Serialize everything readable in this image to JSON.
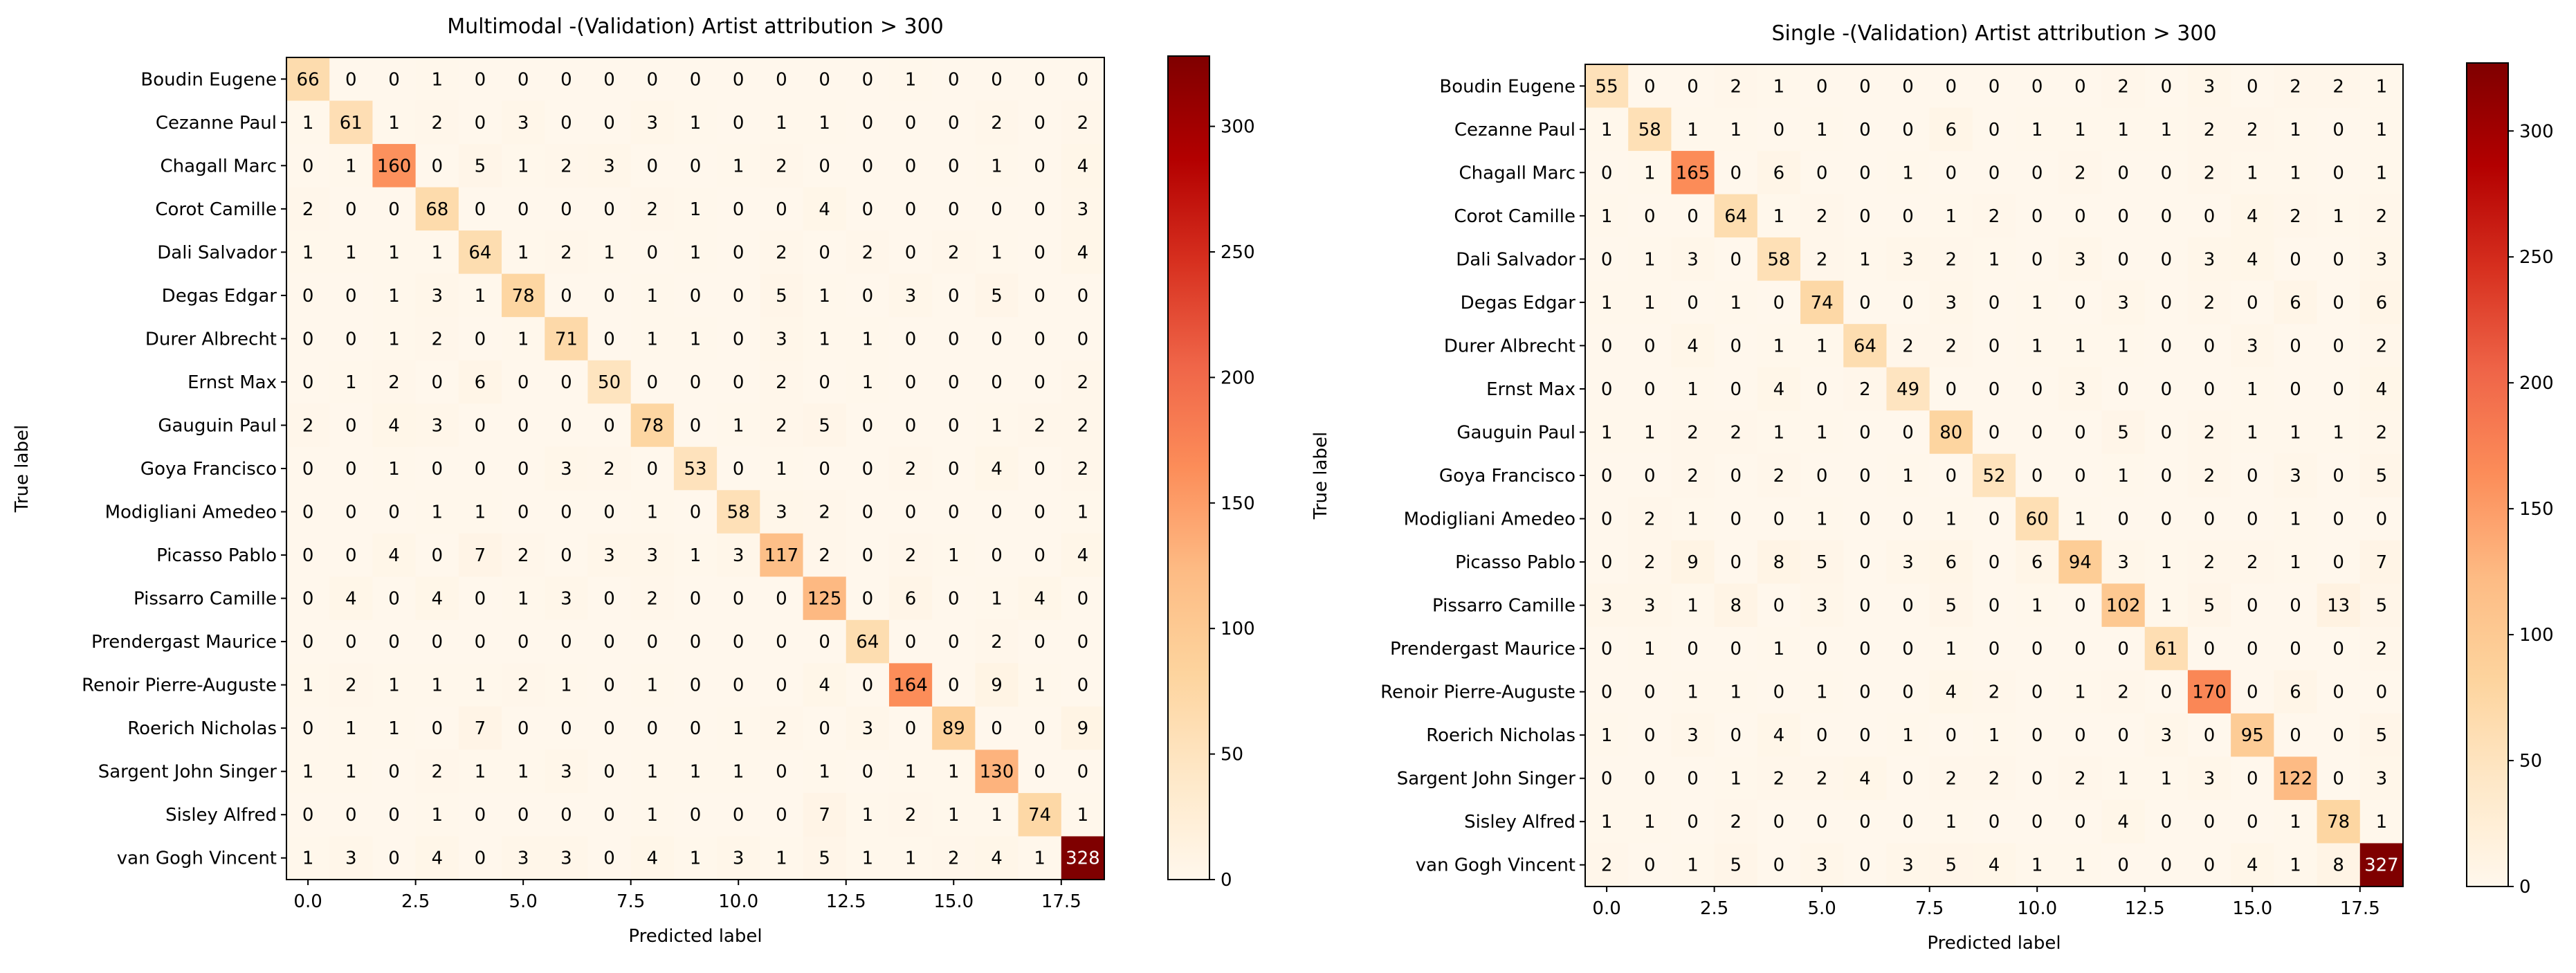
{
  "chart_data": [
    {
      "type": "heatmap",
      "title": "Multimodal -(Validation) Artist attribution > 300",
      "xlabel": "Predicted label",
      "ylabel": "True label",
      "x_ticks": [
        "0.0",
        "2.5",
        "5.0",
        "7.5",
        "10.0",
        "12.5",
        "15.0",
        "17.5"
      ],
      "x_tick_values": [
        0,
        2.5,
        5,
        7.5,
        10,
        12.5,
        15,
        17.5
      ],
      "xlim": [
        -0.5,
        18.5
      ],
      "y_labels": [
        "Boudin Eugene",
        "Cezanne Paul",
        "Chagall Marc",
        "Corot Camille",
        "Dali Salvador",
        "Degas Edgar",
        "Durer Albrecht",
        "Ernst Max",
        "Gauguin Paul",
        "Goya Francisco",
        "Modigliani Amedeo",
        "Picasso Pablo",
        "Pissarro Camille",
        "Prendergast Maurice",
        "Renoir Pierre-Auguste",
        "Roerich Nicholas",
        "Sargent John Singer",
        "Sisley Alfred",
        "van Gogh Vincent"
      ],
      "matrix": [
        [
          66,
          0,
          0,
          1,
          0,
          0,
          0,
          0,
          0,
          0,
          0,
          0,
          0,
          0,
          1,
          0,
          0,
          0,
          0
        ],
        [
          1,
          61,
          1,
          2,
          0,
          3,
          0,
          0,
          3,
          1,
          0,
          1,
          1,
          0,
          0,
          0,
          2,
          0,
          2
        ],
        [
          0,
          1,
          160,
          0,
          5,
          1,
          2,
          3,
          0,
          0,
          1,
          2,
          0,
          0,
          0,
          0,
          1,
          0,
          4
        ],
        [
          2,
          0,
          0,
          68,
          0,
          0,
          0,
          0,
          2,
          1,
          0,
          0,
          4,
          0,
          0,
          0,
          0,
          0,
          3
        ],
        [
          1,
          1,
          1,
          1,
          64,
          1,
          2,
          1,
          0,
          1,
          0,
          2,
          0,
          2,
          0,
          2,
          1,
          0,
          4
        ],
        [
          0,
          0,
          1,
          3,
          1,
          78,
          0,
          0,
          1,
          0,
          0,
          5,
          1,
          0,
          3,
          0,
          5,
          0,
          0
        ],
        [
          0,
          0,
          1,
          2,
          0,
          1,
          71,
          0,
          1,
          1,
          0,
          3,
          1,
          1,
          0,
          0,
          0,
          0,
          0
        ],
        [
          0,
          1,
          2,
          0,
          6,
          0,
          0,
          50,
          0,
          0,
          0,
          2,
          0,
          1,
          0,
          0,
          0,
          0,
          2
        ],
        [
          2,
          0,
          4,
          3,
          0,
          0,
          0,
          0,
          78,
          0,
          1,
          2,
          5,
          0,
          0,
          0,
          1,
          2,
          2
        ],
        [
          0,
          0,
          1,
          0,
          0,
          0,
          3,
          2,
          0,
          53,
          0,
          1,
          0,
          0,
          2,
          0,
          4,
          0,
          2
        ],
        [
          0,
          0,
          0,
          1,
          1,
          0,
          0,
          0,
          1,
          0,
          58,
          3,
          2,
          0,
          0,
          0,
          0,
          0,
          1
        ],
        [
          0,
          0,
          4,
          0,
          7,
          2,
          0,
          3,
          3,
          1,
          3,
          117,
          2,
          0,
          2,
          1,
          0,
          0,
          4
        ],
        [
          0,
          4,
          0,
          4,
          0,
          1,
          3,
          0,
          2,
          0,
          0,
          0,
          125,
          0,
          6,
          0,
          1,
          4,
          0
        ],
        [
          0,
          0,
          0,
          0,
          0,
          0,
          0,
          0,
          0,
          0,
          0,
          0,
          0,
          64,
          0,
          0,
          2,
          0,
          0
        ],
        [
          1,
          2,
          1,
          1,
          1,
          2,
          1,
          0,
          1,
          0,
          0,
          0,
          4,
          0,
          164,
          0,
          9,
          1,
          0
        ],
        [
          0,
          1,
          1,
          0,
          7,
          0,
          0,
          0,
          0,
          0,
          1,
          2,
          0,
          3,
          0,
          89,
          0,
          0,
          9
        ],
        [
          1,
          1,
          0,
          2,
          1,
          1,
          3,
          0,
          1,
          1,
          1,
          0,
          1,
          0,
          1,
          1,
          130,
          0,
          0
        ],
        [
          0,
          0,
          0,
          1,
          0,
          0,
          0,
          0,
          1,
          0,
          0,
          0,
          7,
          1,
          2,
          1,
          1,
          74,
          1
        ],
        [
          1,
          3,
          0,
          4,
          0,
          3,
          3,
          0,
          4,
          1,
          3,
          1,
          5,
          1,
          1,
          2,
          4,
          1,
          328
        ]
      ],
      "colorbar": {
        "colormap": "OrRd",
        "range": [
          0,
          328
        ],
        "ticks": [
          0,
          50,
          100,
          150,
          200,
          250,
          300
        ]
      }
    },
    {
      "type": "heatmap",
      "title": "Single -(Validation) Artist attribution > 300",
      "xlabel": "Predicted label",
      "ylabel": "True label",
      "x_ticks": [
        "0.0",
        "2.5",
        "5.0",
        "7.5",
        "10.0",
        "12.5",
        "15.0",
        "17.5"
      ],
      "x_tick_values": [
        0,
        2.5,
        5,
        7.5,
        10,
        12.5,
        15,
        17.5
      ],
      "xlim": [
        -0.5,
        18.5
      ],
      "y_labels": [
        "Boudin Eugene",
        "Cezanne Paul",
        "Chagall Marc",
        "Corot Camille",
        "Dali Salvador",
        "Degas Edgar",
        "Durer Albrecht",
        "Ernst Max",
        "Gauguin Paul",
        "Goya Francisco",
        "Modigliani Amedeo",
        "Picasso Pablo",
        "Pissarro Camille",
        "Prendergast Maurice",
        "Renoir Pierre-Auguste",
        "Roerich Nicholas",
        "Sargent John Singer",
        "Sisley Alfred",
        "van Gogh Vincent"
      ],
      "matrix": [
        [
          55,
          0,
          0,
          2,
          1,
          0,
          0,
          0,
          0,
          0,
          0,
          0,
          2,
          0,
          3,
          0,
          2,
          2,
          1
        ],
        [
          1,
          58,
          1,
          1,
          0,
          1,
          0,
          0,
          6,
          0,
          1,
          1,
          1,
          1,
          2,
          2,
          1,
          0,
          1
        ],
        [
          0,
          1,
          165,
          0,
          6,
          0,
          0,
          1,
          0,
          0,
          0,
          2,
          0,
          0,
          2,
          1,
          1,
          0,
          1
        ],
        [
          1,
          0,
          0,
          64,
          1,
          2,
          0,
          0,
          1,
          2,
          0,
          0,
          0,
          0,
          0,
          4,
          2,
          1,
          2
        ],
        [
          0,
          1,
          3,
          0,
          58,
          2,
          1,
          3,
          2,
          1,
          0,
          3,
          0,
          0,
          3,
          4,
          0,
          0,
          3
        ],
        [
          1,
          1,
          0,
          1,
          0,
          74,
          0,
          0,
          3,
          0,
          1,
          0,
          3,
          0,
          2,
          0,
          6,
          0,
          6
        ],
        [
          0,
          0,
          4,
          0,
          1,
          1,
          64,
          2,
          2,
          0,
          1,
          1,
          1,
          0,
          0,
          3,
          0,
          0,
          2
        ],
        [
          0,
          0,
          1,
          0,
          4,
          0,
          2,
          49,
          0,
          0,
          0,
          3,
          0,
          0,
          0,
          1,
          0,
          0,
          4
        ],
        [
          1,
          1,
          2,
          2,
          1,
          1,
          0,
          0,
          80,
          0,
          0,
          0,
          5,
          0,
          2,
          1,
          1,
          1,
          2
        ],
        [
          0,
          0,
          2,
          0,
          2,
          0,
          0,
          1,
          0,
          52,
          0,
          0,
          1,
          0,
          2,
          0,
          3,
          0,
          5
        ],
        [
          0,
          2,
          1,
          0,
          0,
          1,
          0,
          0,
          1,
          0,
          60,
          1,
          0,
          0,
          0,
          0,
          1,
          0,
          0
        ],
        [
          0,
          2,
          9,
          0,
          8,
          5,
          0,
          3,
          6,
          0,
          6,
          94,
          3,
          1,
          2,
          2,
          1,
          0,
          7
        ],
        [
          3,
          3,
          1,
          8,
          0,
          3,
          0,
          0,
          5,
          0,
          1,
          0,
          102,
          1,
          5,
          0,
          0,
          13,
          5
        ],
        [
          0,
          1,
          0,
          0,
          1,
          0,
          0,
          0,
          1,
          0,
          0,
          0,
          0,
          61,
          0,
          0,
          0,
          0,
          2
        ],
        [
          0,
          0,
          1,
          1,
          0,
          1,
          0,
          0,
          4,
          2,
          0,
          1,
          2,
          0,
          170,
          0,
          6,
          0,
          0
        ],
        [
          1,
          0,
          3,
          0,
          4,
          0,
          0,
          1,
          0,
          1,
          0,
          0,
          0,
          3,
          0,
          95,
          0,
          0,
          5
        ],
        [
          0,
          0,
          0,
          1,
          2,
          2,
          4,
          0,
          2,
          2,
          0,
          2,
          1,
          1,
          3,
          0,
          122,
          0,
          3
        ],
        [
          1,
          1,
          0,
          2,
          0,
          0,
          0,
          0,
          1,
          0,
          0,
          0,
          4,
          0,
          0,
          0,
          1,
          78,
          1
        ],
        [
          2,
          0,
          1,
          5,
          0,
          3,
          0,
          3,
          5,
          4,
          1,
          1,
          0,
          0,
          0,
          4,
          1,
          8,
          327
        ]
      ],
      "colorbar": {
        "colormap": "OrRd",
        "range": [
          0,
          327
        ],
        "ticks": [
          0,
          50,
          100,
          150,
          200,
          250,
          300
        ]
      }
    }
  ]
}
